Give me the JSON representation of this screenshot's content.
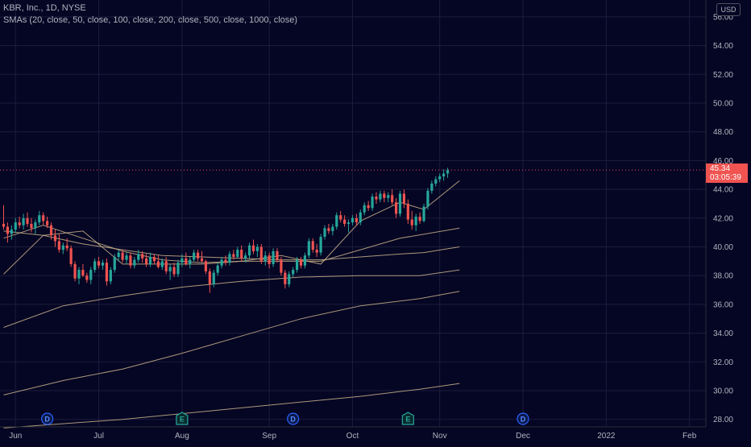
{
  "header": {
    "title": "KBR, Inc., 1D, NYSE",
    "indicator": "SMAs (20, close, 50, close, 100, close, 200, close, 500, close, 1000, close)"
  },
  "currency_label": "USD",
  "last_price": {
    "value": "45.34",
    "countdown": "03:05:39"
  },
  "colors": {
    "background": "#050524",
    "grid": "#1c1c3c",
    "up": "#26a69a",
    "down": "#ef5350",
    "sma": "#c9b38a",
    "event_dividend": "#2962ff",
    "event_earnings": "#26a69a",
    "axis_text": "#b2b5be"
  },
  "chart_data": {
    "type": "candlestick",
    "symbol": "KBR, Inc.",
    "interval": "1D",
    "exchange": "NYSE",
    "ylim": [
      27.5,
      56.5
    ],
    "y_ticks": [
      "56.00",
      "54.00",
      "52.00",
      "50.00",
      "48.00",
      "46.00",
      "44.00",
      "42.00",
      "40.00",
      "38.00",
      "36.00",
      "34.00",
      "32.00",
      "30.00",
      "28.00"
    ],
    "x_ticks": [
      {
        "label": "Jun",
        "day": 3
      },
      {
        "label": "Jul",
        "day": 24
      },
      {
        "label": "Aug",
        "day": 45
      },
      {
        "label": "Sep",
        "day": 67
      },
      {
        "label": "Oct",
        "day": 88
      },
      {
        "label": "Nov",
        "day": 110
      },
      {
        "label": "Dec",
        "day": 131
      },
      {
        "label": "2022",
        "day": 152
      },
      {
        "label": "Feb",
        "day": 173
      }
    ],
    "candles": [
      [
        41.6,
        42.9,
        41.2,
        41.4
      ],
      [
        41.4,
        41.7,
        40.3,
        40.9
      ],
      [
        40.9,
        41.5,
        40.5,
        41.2
      ],
      [
        41.2,
        42.0,
        41.0,
        41.7
      ],
      [
        41.7,
        42.1,
        41.3,
        41.5
      ],
      [
        41.5,
        42.3,
        41.2,
        42.0
      ],
      [
        42.0,
        42.4,
        41.4,
        41.6
      ],
      [
        41.6,
        42.0,
        41.0,
        41.3
      ],
      [
        41.3,
        41.9,
        40.9,
        41.7
      ],
      [
        41.7,
        42.5,
        41.5,
        42.2
      ],
      [
        42.2,
        42.4,
        41.5,
        41.8
      ],
      [
        41.8,
        42.1,
        41.3,
        41.5
      ],
      [
        41.5,
        41.7,
        40.5,
        40.8
      ],
      [
        40.8,
        41.2,
        40.0,
        40.4
      ],
      [
        40.4,
        40.9,
        39.6,
        39.8
      ],
      [
        39.8,
        40.3,
        39.5,
        40.1
      ],
      [
        40.1,
        40.6,
        39.7,
        39.9
      ],
      [
        39.9,
        40.1,
        38.6,
        38.8
      ],
      [
        38.8,
        39.0,
        37.6,
        37.8
      ],
      [
        37.8,
        38.6,
        37.4,
        38.4
      ],
      [
        38.4,
        38.8,
        37.9,
        38.0
      ],
      [
        38.0,
        38.2,
        37.5,
        37.7
      ],
      [
        37.7,
        38.6,
        37.4,
        38.4
      ],
      [
        38.4,
        39.2,
        38.2,
        39.0
      ],
      [
        39.0,
        39.3,
        38.5,
        38.7
      ],
      [
        38.7,
        39.1,
        38.4,
        38.9
      ],
      [
        38.9,
        39.2,
        37.3,
        37.6
      ],
      [
        37.6,
        38.6,
        37.4,
        38.4
      ],
      [
        38.4,
        39.5,
        38.2,
        39.3
      ],
      [
        39.3,
        39.8,
        39.0,
        39.6
      ],
      [
        39.6,
        39.8,
        38.9,
        39.1
      ],
      [
        39.1,
        39.6,
        38.8,
        39.4
      ],
      [
        39.4,
        39.6,
        38.5,
        38.7
      ],
      [
        38.7,
        39.3,
        38.5,
        39.1
      ],
      [
        39.1,
        39.8,
        38.9,
        39.5
      ],
      [
        39.5,
        39.7,
        38.9,
        39.2
      ],
      [
        39.2,
        39.5,
        38.6,
        38.8
      ],
      [
        38.8,
        39.6,
        38.6,
        39.3
      ],
      [
        39.3,
        39.5,
        38.8,
        39.0
      ],
      [
        39.0,
        39.4,
        38.5,
        38.6
      ],
      [
        38.6,
        39.2,
        38.4,
        39.0
      ],
      [
        39.0,
        39.3,
        38.1,
        38.3
      ],
      [
        38.3,
        38.8,
        37.7,
        38.6
      ],
      [
        38.6,
        38.9,
        37.9,
        38.1
      ],
      [
        38.1,
        39.1,
        37.9,
        38.9
      ],
      [
        38.9,
        39.5,
        38.6,
        39.2
      ],
      [
        39.2,
        39.6,
        38.7,
        38.8
      ],
      [
        38.8,
        39.3,
        38.5,
        39.1
      ],
      [
        39.1,
        39.8,
        39.0,
        39.6
      ],
      [
        39.6,
        39.8,
        39.0,
        39.2
      ],
      [
        39.2,
        39.7,
        38.9,
        39.0
      ],
      [
        39.0,
        39.1,
        38.1,
        38.3
      ],
      [
        38.3,
        38.5,
        36.8,
        37.4
      ],
      [
        37.4,
        38.4,
        37.2,
        38.2
      ],
      [
        38.2,
        38.9,
        38.0,
        38.7
      ],
      [
        38.7,
        39.3,
        38.5,
        39.1
      ],
      [
        39.1,
        39.4,
        38.7,
        38.9
      ],
      [
        38.9,
        39.7,
        38.7,
        39.5
      ],
      [
        39.5,
        39.8,
        39.1,
        39.3
      ],
      [
        39.3,
        40.0,
        39.2,
        39.8
      ],
      [
        39.8,
        40.1,
        39.0,
        39.2
      ],
      [
        39.2,
        39.6,
        38.9,
        39.4
      ],
      [
        39.4,
        40.3,
        39.2,
        40.1
      ],
      [
        40.1,
        40.5,
        39.5,
        39.7
      ],
      [
        39.7,
        40.2,
        39.3,
        40.0
      ],
      [
        40.0,
        40.2,
        38.8,
        39.0
      ],
      [
        39.0,
        39.7,
        38.7,
        39.4
      ],
      [
        39.4,
        39.6,
        38.5,
        38.8
      ],
      [
        38.8,
        39.9,
        38.6,
        39.7
      ],
      [
        39.7,
        39.9,
        38.9,
        39.1
      ],
      [
        39.1,
        39.3,
        38.0,
        38.2
      ],
      [
        38.2,
        38.4,
        37.1,
        37.4
      ],
      [
        37.4,
        38.3,
        37.2,
        38.1
      ],
      [
        38.1,
        38.6,
        37.9,
        38.4
      ],
      [
        38.4,
        39.3,
        38.2,
        39.1
      ],
      [
        39.1,
        39.3,
        38.5,
        38.7
      ],
      [
        38.7,
        39.6,
        38.5,
        39.4
      ],
      [
        39.4,
        40.6,
        39.2,
        40.4
      ],
      [
        40.4,
        40.6,
        39.6,
        39.8
      ],
      [
        39.8,
        40.2,
        39.3,
        39.6
      ],
      [
        39.6,
        40.9,
        39.4,
        40.7
      ],
      [
        40.7,
        41.5,
        40.5,
        41.3
      ],
      [
        41.3,
        41.6,
        40.9,
        41.1
      ],
      [
        41.1,
        41.6,
        40.8,
        41.4
      ],
      [
        41.4,
        42.4,
        41.2,
        42.2
      ],
      [
        42.2,
        42.5,
        41.7,
        41.9
      ],
      [
        41.9,
        42.2,
        41.4,
        41.6
      ],
      [
        41.6,
        41.9,
        41.0,
        41.7
      ],
      [
        41.7,
        42.2,
        41.5,
        42.0
      ],
      [
        42.0,
        42.3,
        41.5,
        41.7
      ],
      [
        41.7,
        42.6,
        41.5,
        42.4
      ],
      [
        42.4,
        43.1,
        42.2,
        42.9
      ],
      [
        42.9,
        43.2,
        42.5,
        42.7
      ],
      [
        42.7,
        43.7,
        42.5,
        43.5
      ],
      [
        43.5,
        43.8,
        43.0,
        43.3
      ],
      [
        43.3,
        43.9,
        43.1,
        43.7
      ],
      [
        43.7,
        43.9,
        43.1,
        43.4
      ],
      [
        43.4,
        43.8,
        43.1,
        43.6
      ],
      [
        43.6,
        44.0,
        42.9,
        43.1
      ],
      [
        43.1,
        43.4,
        42.0,
        42.3
      ],
      [
        42.3,
        43.9,
        42.1,
        43.7
      ],
      [
        43.7,
        44.0,
        42.7,
        43.0
      ],
      [
        43.0,
        43.3,
        41.6,
        41.9
      ],
      [
        41.9,
        42.5,
        41.2,
        41.5
      ],
      [
        41.5,
        42.3,
        41.1,
        42.1
      ],
      [
        42.1,
        42.4,
        41.6,
        41.8
      ],
      [
        41.8,
        43.0,
        41.7,
        42.8
      ],
      [
        42.8,
        44.1,
        42.6,
        43.9
      ],
      [
        43.9,
        44.6,
        43.7,
        44.4
      ],
      [
        44.4,
        44.9,
        44.2,
        44.7
      ],
      [
        44.7,
        45.1,
        44.5,
        44.9
      ],
      [
        44.9,
        45.4,
        44.6,
        45.1
      ],
      [
        45.1,
        45.5,
        44.8,
        45.34
      ]
    ],
    "sma_lines": [
      {
        "points": [
          [
            0,
            38.1
          ],
          [
            10,
            40.8
          ],
          [
            20,
            41.1
          ],
          [
            30,
            38.8
          ],
          [
            40,
            38.8
          ],
          [
            50,
            38.8
          ],
          [
            60,
            39.0
          ],
          [
            70,
            39.4
          ],
          [
            80,
            38.8
          ],
          [
            90,
            41.8
          ],
          [
            100,
            43.1
          ],
          [
            106,
            42.6
          ],
          [
            115,
            44.6
          ]
        ]
      },
      {
        "points": [
          [
            0,
            40.6
          ],
          [
            10,
            41.5
          ],
          [
            20,
            40.6
          ],
          [
            30,
            39.7
          ],
          [
            40,
            39.1
          ],
          [
            50,
            38.9
          ],
          [
            60,
            39.0
          ],
          [
            70,
            39.0
          ],
          [
            80,
            39.0
          ],
          [
            90,
            39.8
          ],
          [
            100,
            40.6
          ],
          [
            115,
            41.3
          ]
        ]
      },
      {
        "points": [
          [
            0,
            41.1
          ],
          [
            10,
            40.8
          ],
          [
            20,
            40.2
          ],
          [
            30,
            39.8
          ],
          [
            40,
            39.4
          ],
          [
            50,
            39.3
          ],
          [
            60,
            39.2
          ],
          [
            70,
            39.1
          ],
          [
            80,
            39.1
          ],
          [
            90,
            39.3
          ],
          [
            100,
            39.5
          ],
          [
            106,
            39.6
          ],
          [
            115,
            40.0
          ]
        ]
      },
      {
        "points": [
          [
            0,
            34.4
          ],
          [
            15,
            35.9
          ],
          [
            30,
            36.6
          ],
          [
            45,
            37.2
          ],
          [
            60,
            37.6
          ],
          [
            75,
            37.9
          ],
          [
            90,
            38.0
          ],
          [
            105,
            38.0
          ],
          [
            115,
            38.4
          ]
        ]
      },
      {
        "points": [
          [
            0,
            29.7
          ],
          [
            15,
            30.7
          ],
          [
            30,
            31.5
          ],
          [
            45,
            32.6
          ],
          [
            60,
            33.8
          ],
          [
            75,
            35.0
          ],
          [
            90,
            35.9
          ],
          [
            105,
            36.4
          ],
          [
            115,
            36.9
          ]
        ]
      },
      {
        "points": [
          [
            0,
            27.4
          ],
          [
            30,
            28.0
          ],
          [
            60,
            28.8
          ],
          [
            90,
            29.6
          ],
          [
            105,
            30.1
          ],
          [
            115,
            30.5
          ]
        ]
      }
    ],
    "events": [
      {
        "type": "dividend",
        "label": "D",
        "day": 11
      },
      {
        "type": "earnings",
        "label": "E",
        "day": 45
      },
      {
        "type": "dividend",
        "label": "D",
        "day": 73
      },
      {
        "type": "earnings",
        "label": "E",
        "day": 102
      },
      {
        "type": "dividend",
        "label": "D",
        "day": 131
      }
    ]
  }
}
